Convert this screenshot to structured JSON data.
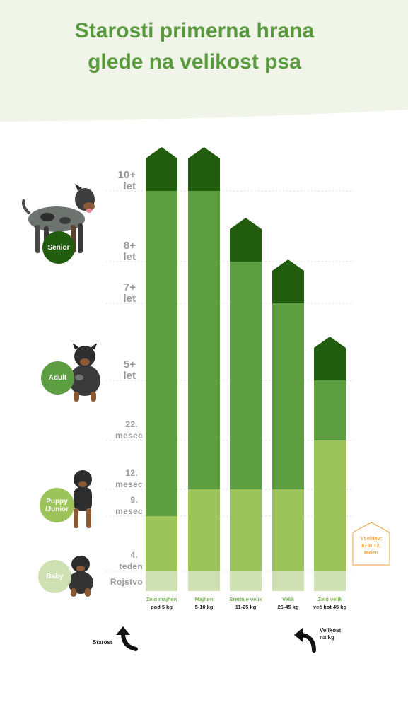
{
  "title_line1": "Starosti primerna hrana",
  "title_line2": "glede na velikost psa",
  "colors": {
    "senior": "#225c0e",
    "adult": "#5d9e42",
    "puppy": "#9dc45a",
    "baby": "#cfe0b3",
    "title": "#5a9a3e",
    "header_bg": "#f1f5e9",
    "note": "#f0a040"
  },
  "age_labels": [
    {
      "line1": "10+",
      "line2": "let"
    },
    {
      "line1": "8+",
      "line2": "let"
    },
    {
      "line1": "7+",
      "line2": "let"
    },
    {
      "line1": "5+",
      "line2": "let"
    },
    {
      "line1": "22.",
      "line2": "mesec"
    },
    {
      "line1": "12.",
      "line2": "mesec"
    },
    {
      "line1": "9.",
      "line2": "mesec"
    },
    {
      "line1": "4.",
      "line2": "teden"
    },
    {
      "line1": "Rojstvo",
      "line2": ""
    }
  ],
  "stages": {
    "senior": "Senior",
    "adult": "Adult",
    "puppy": "Puppy\n/Junior",
    "baby": "Baby"
  },
  "icons": [
    "senior-dog-photo",
    "adult-dog-photo",
    "puppy-dog-photo",
    "baby-dog-photo",
    "curved-arrow-icon"
  ],
  "chart_data": {
    "type": "bar",
    "categories": [
      {
        "name": "Zelo majhen",
        "weight": "pod 5 kg"
      },
      {
        "name": "Majhen",
        "weight": "5-10 kg"
      },
      {
        "name": "Srednje velik",
        "weight": "11-25 kg"
      },
      {
        "name": "Velik",
        "weight": "26-45 kg"
      },
      {
        "name": "Zelo velik",
        "weight": "več kot 45 kg"
      }
    ],
    "age_scale": [
      "Rojstvo",
      "4. teden",
      "9. mesec",
      "12. mesec",
      "22. mesec",
      "5+ let",
      "7+ let",
      "8+ let",
      "10+ let"
    ],
    "segments": [
      {
        "baby_end": "4. teden",
        "puppy_end": "9. mesec",
        "adult_end": "10+ let"
      },
      {
        "baby_end": "4. teden",
        "puppy_end": "12. mesec",
        "adult_end": "10+ let"
      },
      {
        "baby_end": "4. teden",
        "puppy_end": "12. mesec",
        "adult_end": "8+ let"
      },
      {
        "baby_end": "4. teden",
        "puppy_end": "12. mesec",
        "adult_end": "7+ let"
      },
      {
        "baby_end": "4. teden",
        "puppy_end": "22. mesec",
        "adult_end": "5+ let"
      }
    ]
  },
  "axis_y_name": "Starost",
  "axis_x_name": "Velikost\nna kg",
  "note": "Vselitev:\n8. in 12.\nteden"
}
